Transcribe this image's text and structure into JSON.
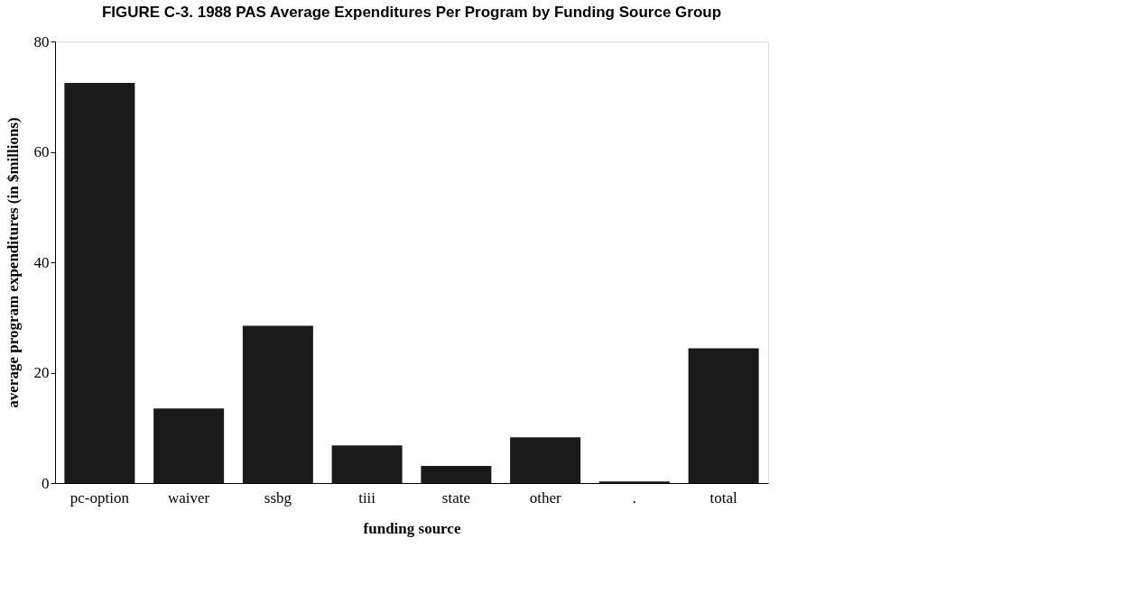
{
  "chart_data": {
    "type": "bar",
    "title": "FIGURE C-3. 1988 PAS Average Expenditures Per Program by Funding Source Group",
    "xlabel": "funding source",
    "ylabel": "average program expenditures (in $millions)",
    "categories": [
      "pc-option",
      "waiver",
      "ssbg",
      "tiii",
      "state",
      "other",
      ".",
      "total"
    ],
    "values": [
      72.5,
      13.5,
      28.5,
      6.8,
      3.1,
      8.3,
      0.3,
      24.4
    ],
    "color": "#1a1a1a",
    "ylim": [
      0,
      80
    ],
    "yticks": [
      0,
      20,
      40,
      60,
      80
    ],
    "grid": false
  }
}
